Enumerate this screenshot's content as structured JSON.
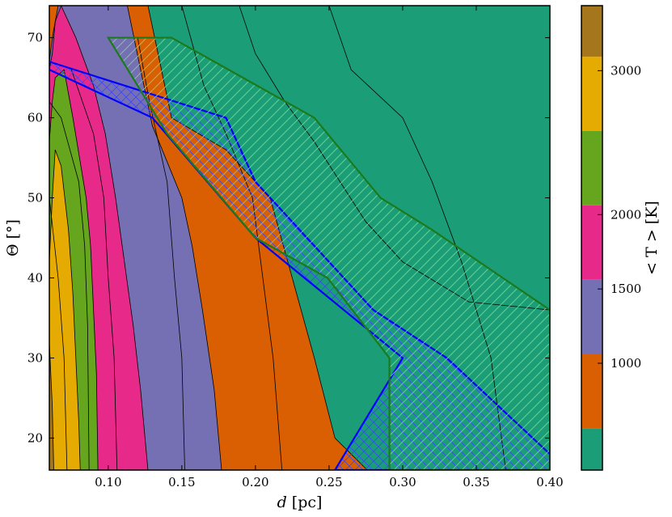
{
  "chart_data": {
    "type": "contour",
    "xlabel_var": "d",
    "xlabel_unit": "[pc]",
    "ylabel_var": "Θ",
    "ylabel_unit": "[°]",
    "xlim": [
      0.06,
      0.4
    ],
    "ylim": [
      16,
      74
    ],
    "xticks": [
      0.1,
      0.15,
      0.2,
      0.25,
      0.3,
      0.35,
      0.4
    ],
    "xtick_labels": [
      "0.10",
      "0.15",
      "0.20",
      "0.25",
      "0.30",
      "0.35",
      "0.40"
    ],
    "yticks": [
      20,
      30,
      40,
      50,
      60,
      70
    ],
    "ytick_labels": [
      "20",
      "30",
      "40",
      "50",
      "60",
      "70"
    ],
    "colorbar": {
      "label": "< T > [K]",
      "tick_values": [
        1000,
        1500,
        2000,
        3000
      ],
      "tick_labels": [
        "1000",
        "1500",
        "2000",
        "3000"
      ],
      "bands": [
        {
          "color": "#1b9e77",
          "lo": 0,
          "hi": 0.09
        },
        {
          "color": "#d95f02",
          "lo": 0.09,
          "hi": 0.25
        },
        {
          "color": "#7570b3",
          "lo": 0.25,
          "hi": 0.41
        },
        {
          "color": "#e7298a",
          "lo": 0.41,
          "hi": 0.57
        },
        {
          "color": "#66a61e",
          "lo": 0.57,
          "hi": 0.73
        },
        {
          "color": "#e6ab02",
          "lo": 0.73,
          "hi": 0.89
        },
        {
          "color": "#a6761d",
          "lo": 0.89,
          "hi": 1.0
        }
      ],
      "tick_fracs": [
        0.23,
        0.39,
        0.55,
        0.86
      ]
    },
    "band_colors": [
      "#a6761d",
      "#e6ab02",
      "#66a61e",
      "#e7298a",
      "#7570b3",
      "#d95f02",
      "#1b9e77"
    ],
    "filled_boundaries": [
      [
        [
          0.06,
          32
        ],
        [
          0.062,
          24
        ],
        [
          0.063,
          16
        ]
      ],
      [
        [
          0.06,
          42
        ],
        [
          0.062,
          50
        ],
        [
          0.064,
          56
        ],
        [
          0.068,
          54
        ],
        [
          0.073,
          46
        ],
        [
          0.076,
          38
        ],
        [
          0.078,
          30
        ],
        [
          0.08,
          22
        ],
        [
          0.081,
          16
        ]
      ],
      [
        [
          0.06,
          57
        ],
        [
          0.062,
          62
        ],
        [
          0.064,
          65
        ],
        [
          0.07,
          66
        ],
        [
          0.076,
          60
        ],
        [
          0.085,
          50
        ],
        [
          0.088,
          44
        ],
        [
          0.09,
          36
        ],
        [
          0.092,
          28
        ],
        [
          0.093,
          16
        ]
      ],
      [
        [
          0.06,
          66
        ],
        [
          0.062,
          68
        ],
        [
          0.064,
          72
        ],
        [
          0.068,
          74
        ],
        [
          0.078,
          70
        ],
        [
          0.09,
          64
        ],
        [
          0.098,
          58
        ],
        [
          0.105,
          50
        ],
        [
          0.111,
          42
        ],
        [
          0.117,
          34
        ],
        [
          0.122,
          26
        ],
        [
          0.127,
          16
        ]
      ],
      [
        [
          0.06,
          67
        ],
        [
          0.062,
          70
        ],
        [
          0.064,
          72
        ],
        [
          0.066,
          74
        ],
        [
          0.113,
          74
        ],
        [
          0.122,
          66
        ],
        [
          0.13,
          59
        ],
        [
          0.15,
          50
        ],
        [
          0.157,
          44
        ],
        [
          0.164,
          36
        ],
        [
          0.172,
          26
        ],
        [
          0.177,
          16
        ]
      ],
      [
        [
          0.127,
          74
        ],
        [
          0.143,
          60
        ],
        [
          0.18,
          56
        ],
        [
          0.21,
          50
        ],
        [
          0.225,
          40
        ],
        [
          0.24,
          30
        ],
        [
          0.254,
          20
        ],
        [
          0.276,
          16
        ]
      ],
      [
        [
          0.189,
          74
        ],
        [
          0.2,
          68
        ],
        [
          0.22,
          62
        ],
        [
          0.24,
          57
        ],
        [
          0.275,
          47
        ],
        [
          0.3,
          42
        ],
        [
          0.345,
          37
        ],
        [
          0.4,
          36
        ],
        [
          0.4,
          16
        ]
      ]
    ],
    "regions": [
      {
        "name": "blue-region",
        "color": "#0000ff",
        "points": [
          [
            0.06,
            66
          ],
          [
            0.13,
            60
          ],
          [
            0.2,
            45
          ],
          [
            0.3,
            30
          ],
          [
            0.254,
            16
          ],
          [
            0.4,
            16
          ],
          [
            0.4,
            18
          ],
          [
            0.33,
            30
          ],
          [
            0.28,
            36
          ],
          [
            0.2,
            52
          ],
          [
            0.18,
            60
          ],
          [
            0.06,
            67
          ]
        ]
      },
      {
        "name": "green-region",
        "color": "#1b7a1b",
        "points": [
          [
            0.1,
            70
          ],
          [
            0.143,
            70
          ],
          [
            0.24,
            60
          ],
          [
            0.285,
            50
          ],
          [
            0.32,
            46
          ],
          [
            0.4,
            36
          ],
          [
            0.4,
            16
          ],
          [
            0.291,
            16
          ],
          [
            0.291,
            30
          ],
          [
            0.249,
            40
          ],
          [
            0.2,
            45
          ],
          [
            0.14,
            58
          ],
          [
            0.1,
            70
          ]
        ]
      }
    ]
  }
}
